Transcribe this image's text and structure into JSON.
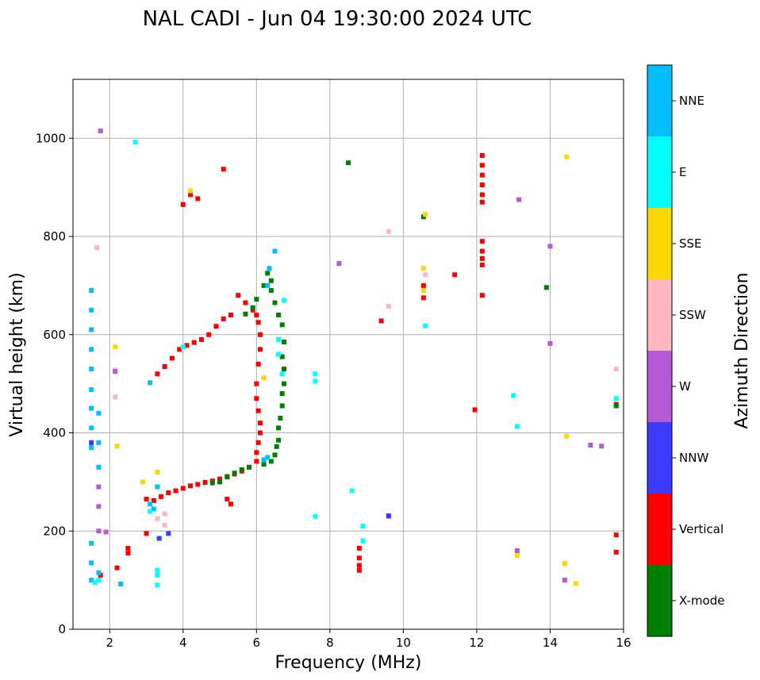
{
  "chart_data": {
    "type": "scatter",
    "title": "NAL CADI - Jun 04 19:30:00 2024 UTC",
    "xlabel": "Frequency (MHz)",
    "ylabel": "Virtual height (km)",
    "xlim": [
      1,
      16
    ],
    "ylim": [
      0,
      1120
    ],
    "xticks": [
      2,
      4,
      6,
      8,
      10,
      12,
      14,
      16
    ],
    "yticks": [
      0,
      200,
      400,
      600,
      800,
      1000
    ],
    "grid": true,
    "colorbar": {
      "title": "Azimuth Direction",
      "categories": [
        {
          "name": "X-mode",
          "color": "#008000"
        },
        {
          "name": "Vertical",
          "color": "#ff0000"
        },
        {
          "name": "NNW",
          "color": "#3b3bff"
        },
        {
          "name": "W",
          "color": "#b659d6"
        },
        {
          "name": "SSW",
          "color": "#ffb6c1"
        },
        {
          "name": "SSE",
          "color": "#ffd700"
        },
        {
          "name": "E",
          "color": "#00ffff"
        },
        {
          "name": "NNE",
          "color": "#00bfff"
        }
      ]
    },
    "series": [
      {
        "name": "Vertical",
        "points": [
          [
            3.0,
            265
          ],
          [
            3.2,
            262
          ],
          [
            3.4,
            270
          ],
          [
            3.6,
            278
          ],
          [
            3.8,
            282
          ],
          [
            4.0,
            287
          ],
          [
            4.2,
            292
          ],
          [
            4.4,
            295
          ],
          [
            4.6,
            299
          ],
          [
            4.8,
            302
          ],
          [
            5.0,
            306
          ],
          [
            5.2,
            311
          ],
          [
            5.4,
            316
          ],
          [
            5.6,
            322
          ],
          [
            5.8,
            330
          ],
          [
            6.0,
            342
          ],
          [
            6.0,
            360
          ],
          [
            6.05,
            380
          ],
          [
            6.1,
            400
          ],
          [
            6.1,
            420
          ],
          [
            6.05,
            445
          ],
          [
            6.0,
            470
          ],
          [
            6.0,
            500
          ],
          [
            6.05,
            540
          ],
          [
            6.1,
            570
          ],
          [
            6.1,
            600
          ],
          [
            6.05,
            625
          ],
          [
            6.0,
            640
          ],
          [
            5.9,
            650
          ],
          [
            5.7,
            665
          ],
          [
            5.5,
            680
          ],
          [
            5.3,
            640
          ],
          [
            5.1,
            632
          ],
          [
            4.9,
            617
          ],
          [
            4.7,
            600
          ],
          [
            4.5,
            590
          ],
          [
            4.3,
            584
          ],
          [
            4.1,
            578
          ],
          [
            3.9,
            570
          ],
          [
            3.7,
            552
          ],
          [
            3.5,
            535
          ],
          [
            3.3,
            520
          ],
          [
            4.0,
            865
          ],
          [
            4.2,
            885
          ],
          [
            4.4,
            877
          ],
          [
            5.1,
            937
          ],
          [
            1.75,
            110
          ],
          [
            2.5,
            165
          ],
          [
            2.5,
            155
          ],
          [
            2.2,
            125
          ],
          [
            3.0,
            195
          ],
          [
            5.3,
            255
          ],
          [
            5.2,
            265
          ],
          [
            8.8,
            120
          ],
          [
            8.8,
            130
          ],
          [
            8.8,
            165
          ],
          [
            8.8,
            145
          ],
          [
            9.4,
            628
          ],
          [
            10.55,
            700
          ],
          [
            10.55,
            675
          ],
          [
            11.4,
            722
          ],
          [
            11.95,
            447
          ],
          [
            12.15,
            965
          ],
          [
            12.15,
            945
          ],
          [
            12.15,
            925
          ],
          [
            12.15,
            905
          ],
          [
            12.15,
            885
          ],
          [
            12.15,
            870
          ],
          [
            12.15,
            790
          ],
          [
            12.15,
            770
          ],
          [
            12.15,
            755
          ],
          [
            12.15,
            742
          ],
          [
            12.15,
            680
          ],
          [
            15.8,
            458
          ],
          [
            15.8,
            192
          ],
          [
            15.8,
            157
          ]
        ]
      },
      {
        "name": "X-mode",
        "points": [
          [
            4.8,
            298
          ],
          [
            5.0,
            300
          ],
          [
            5.2,
            310
          ],
          [
            5.4,
            318
          ],
          [
            5.6,
            325
          ],
          [
            5.8,
            330
          ],
          [
            6.2,
            336
          ],
          [
            6.4,
            342
          ],
          [
            6.5,
            355
          ],
          [
            6.55,
            372
          ],
          [
            6.6,
            385
          ],
          [
            6.6,
            410
          ],
          [
            6.65,
            430
          ],
          [
            6.7,
            455
          ],
          [
            6.7,
            480
          ],
          [
            6.75,
            500
          ],
          [
            6.75,
            530
          ],
          [
            6.7,
            555
          ],
          [
            6.75,
            585
          ],
          [
            6.7,
            620
          ],
          [
            6.6,
            640
          ],
          [
            6.5,
            665
          ],
          [
            6.4,
            690
          ],
          [
            6.4,
            710
          ],
          [
            6.3,
            725
          ],
          [
            6.2,
            700
          ],
          [
            6.0,
            672
          ],
          [
            5.9,
            655
          ],
          [
            5.7,
            642
          ],
          [
            8.5,
            950
          ],
          [
            10.55,
            840
          ],
          [
            13.9,
            696
          ],
          [
            15.8,
            455
          ]
        ]
      },
      {
        "name": "NNE",
        "points": [
          [
            1.5,
            100
          ],
          [
            1.5,
            135
          ],
          [
            1.5,
            175
          ],
          [
            1.5,
            370
          ],
          [
            1.5,
            410
          ],
          [
            1.5,
            450
          ],
          [
            1.5,
            488
          ],
          [
            1.5,
            530
          ],
          [
            1.5,
            570
          ],
          [
            1.5,
            610
          ],
          [
            1.5,
            650
          ],
          [
            1.5,
            690
          ],
          [
            1.7,
            440
          ],
          [
            1.7,
            380
          ],
          [
            1.7,
            330
          ],
          [
            1.7,
            115
          ],
          [
            2.3,
            92
          ],
          [
            3.1,
            255
          ],
          [
            3.2,
            245
          ],
          [
            3.3,
            290
          ],
          [
            3.1,
            502
          ],
          [
            6.2,
            345
          ],
          [
            6.3,
            350
          ],
          [
            6.5,
            770
          ],
          [
            6.35,
            735
          ],
          [
            6.3,
            700
          ]
        ]
      },
      {
        "name": "E",
        "points": [
          [
            1.6,
            95
          ],
          [
            1.7,
            100
          ],
          [
            2.7,
            992
          ],
          [
            3.3,
            110
          ],
          [
            3.3,
            90
          ],
          [
            3.3,
            120
          ],
          [
            3.1,
            240
          ],
          [
            4.0,
            575
          ],
          [
            6.7,
            520
          ],
          [
            6.6,
            560
          ],
          [
            6.6,
            590
          ],
          [
            6.75,
            670
          ],
          [
            7.6,
            230
          ],
          [
            7.6,
            505
          ],
          [
            7.6,
            520
          ],
          [
            8.6,
            282
          ],
          [
            8.9,
            210
          ],
          [
            8.9,
            180
          ],
          [
            10.6,
            618
          ],
          [
            13.0,
            476
          ],
          [
            13.1,
            413
          ],
          [
            15.8,
            470
          ]
        ]
      },
      {
        "name": "SSE",
        "points": [
          [
            2.15,
            575
          ],
          [
            2.2,
            373
          ],
          [
            2.9,
            300
          ],
          [
            3.3,
            320
          ],
          [
            4.2,
            893
          ],
          [
            6.2,
            512
          ],
          [
            10.55,
            735
          ],
          [
            10.55,
            690
          ],
          [
            10.6,
            845
          ],
          [
            13.1,
            150
          ],
          [
            14.45,
            962
          ],
          [
            14.45,
            393
          ],
          [
            14.4,
            134
          ],
          [
            14.7,
            93
          ]
        ]
      },
      {
        "name": "SSW",
        "points": [
          [
            1.65,
            777
          ],
          [
            2.15,
            528
          ],
          [
            2.15,
            473
          ],
          [
            3.3,
            225
          ],
          [
            3.5,
            212
          ],
          [
            3.5,
            235
          ],
          [
            9.6,
            658
          ],
          [
            9.6,
            810
          ],
          [
            10.6,
            722
          ],
          [
            15.8,
            530
          ]
        ]
      },
      {
        "name": "W",
        "points": [
          [
            1.7,
            250
          ],
          [
            1.7,
            290
          ],
          [
            1.7,
            200
          ],
          [
            1.75,
            1015
          ],
          [
            1.9,
            198
          ],
          [
            2.15,
            525
          ],
          [
            8.25,
            745
          ],
          [
            9.6,
            230
          ],
          [
            13.15,
            875
          ],
          [
            13.1,
            160
          ],
          [
            14.0,
            780
          ],
          [
            14.0,
            582
          ],
          [
            14.4,
            100
          ],
          [
            15.4,
            373
          ],
          [
            15.1,
            375
          ]
        ]
      },
      {
        "name": "NNW",
        "points": [
          [
            3.35,
            185
          ],
          [
            3.6,
            195
          ],
          [
            1.5,
            380
          ],
          [
            9.6,
            231
          ]
        ]
      }
    ]
  }
}
